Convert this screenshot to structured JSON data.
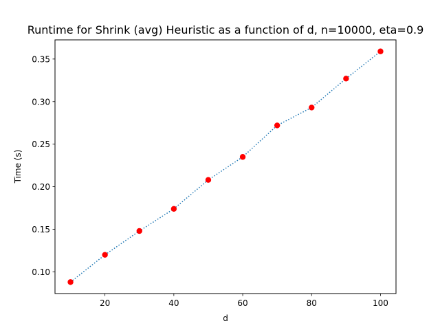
{
  "chart_data": {
    "type": "line",
    "title": "Runtime for Shrink (avg) Heuristic as a function of d, n=10000, eta=0.9",
    "xlabel": "d",
    "ylabel": "Time (s)",
    "x": [
      10,
      20,
      30,
      40,
      50,
      60,
      70,
      80,
      90,
      100
    ],
    "series": [
      {
        "values": [
          0.088,
          0.12,
          0.148,
          0.174,
          0.208,
          0.235,
          0.272,
          0.293,
          0.327,
          0.359
        ]
      }
    ],
    "xlim": [
      5.5,
      104.5
    ],
    "ylim": [
      0.0745,
      0.3725
    ],
    "xticks": [
      20,
      40,
      60,
      80,
      100
    ],
    "xtick_labels": [
      "20",
      "40",
      "60",
      "80",
      "100"
    ],
    "yticks": [
      0.1,
      0.15,
      0.2,
      0.25,
      0.3,
      0.35
    ],
    "ytick_labels": [
      "0.10",
      "0.15",
      "0.20",
      "0.25",
      "0.30",
      "0.35"
    ],
    "grid": false,
    "line_style": "dotted",
    "line_color": "#1f77b4",
    "marker_color": "#ff0000"
  }
}
